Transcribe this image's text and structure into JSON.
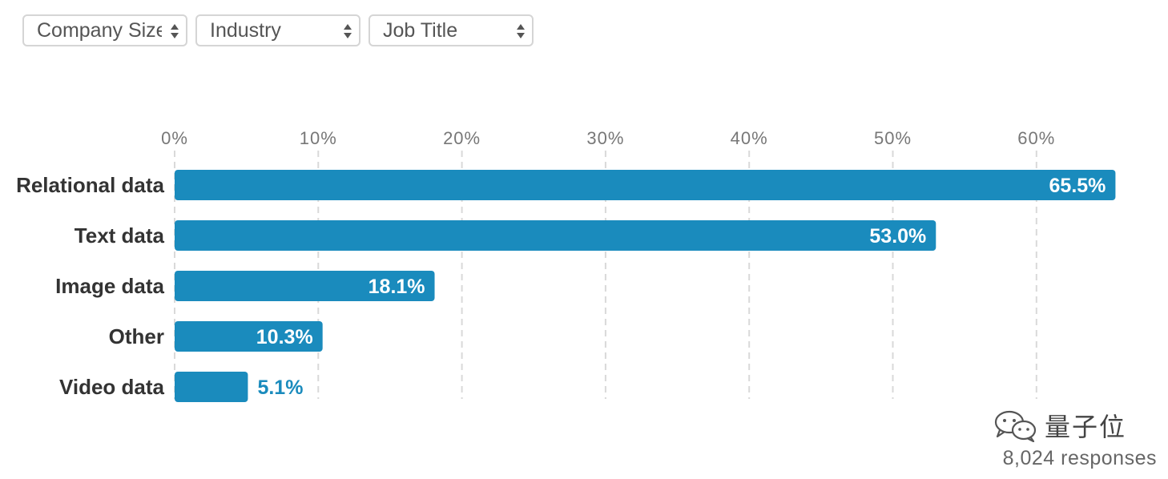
{
  "filters": {
    "company_size": "Company Size",
    "industry": "Industry",
    "job_title": "Job Title"
  },
  "chart_data": {
    "type": "bar",
    "orientation": "horizontal",
    "categories": [
      "Relational data",
      "Text data",
      "Image data",
      "Other",
      "Video data"
    ],
    "values": [
      65.5,
      53.0,
      18.1,
      10.3,
      5.1
    ],
    "value_labels": [
      "65.5%",
      "53.0%",
      "18.1%",
      "10.3%",
      "5.1%"
    ],
    "xlim": [
      0,
      65
    ],
    "x_ticks": [
      0,
      10,
      20,
      30,
      40,
      50,
      60
    ],
    "x_tick_labels": [
      "0%",
      "10%",
      "20%",
      "30%",
      "40%",
      "50%",
      "60%"
    ],
    "grid": true,
    "bar_color": "#1a8bbd",
    "grid_color": "#d9d9d9",
    "title": "",
    "xlabel": "",
    "ylabel": ""
  },
  "watermark": {
    "icon": "wechat-icon",
    "text": "量子位"
  },
  "footer": {
    "responses": "8,024 responses"
  }
}
